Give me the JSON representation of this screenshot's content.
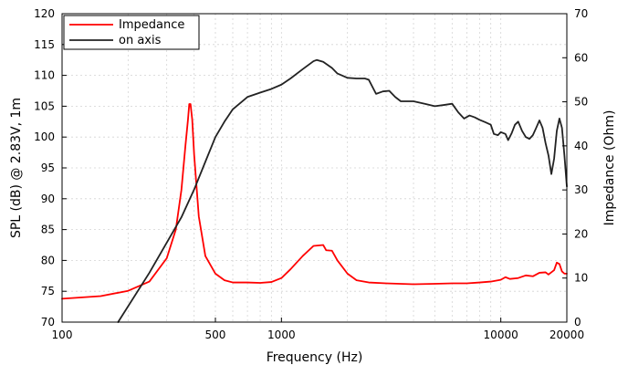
{
  "chart_data": {
    "type": "line",
    "xlabel": "Frequency (Hz)",
    "ylabel_left": "SPL (dB) @ 2.83V, 1m",
    "ylabel_right": "Impedance (Ohm)",
    "x_scale": "log",
    "xlim": [
      100,
      20000
    ],
    "ylim_left": [
      70,
      120
    ],
    "ylim_right": [
      0,
      70
    ],
    "x_ticks": [
      100,
      500,
      1000,
      10000,
      20000
    ],
    "x_tick_labels": [
      "100",
      "500",
      "1000",
      "10000",
      "20000"
    ],
    "y_left_ticks": [
      70,
      75,
      80,
      85,
      90,
      95,
      100,
      105,
      110,
      115,
      120
    ],
    "y_right_ticks": [
      0,
      10,
      20,
      30,
      40,
      50,
      60,
      70
    ],
    "grid": true,
    "legend_position": "top-left",
    "series": [
      {
        "name": "Impedance",
        "axis": "right",
        "color": "#ff0000",
        "points": [
          [
            100,
            5.3
          ],
          [
            150,
            5.9
          ],
          [
            200,
            7.1
          ],
          [
            250,
            9.2
          ],
          [
            300,
            14.5
          ],
          [
            330,
            21
          ],
          [
            350,
            30
          ],
          [
            365,
            40
          ],
          [
            375,
            46
          ],
          [
            380,
            49.5
          ],
          [
            385,
            49.5
          ],
          [
            392,
            46
          ],
          [
            400,
            38
          ],
          [
            420,
            24
          ],
          [
            450,
            15
          ],
          [
            500,
            11
          ],
          [
            550,
            9.5
          ],
          [
            600,
            9
          ],
          [
            700,
            9
          ],
          [
            800,
            8.9
          ],
          [
            900,
            9.1
          ],
          [
            1000,
            10
          ],
          [
            1100,
            12
          ],
          [
            1250,
            15
          ],
          [
            1400,
            17.3
          ],
          [
            1550,
            17.5
          ],
          [
            1600,
            16.3
          ],
          [
            1700,
            16.2
          ],
          [
            1800,
            14
          ],
          [
            2000,
            11
          ],
          [
            2200,
            9.5
          ],
          [
            2500,
            9
          ],
          [
            3000,
            8.8
          ],
          [
            4000,
            8.6
          ],
          [
            5000,
            8.7
          ],
          [
            6000,
            8.8
          ],
          [
            7000,
            8.8
          ],
          [
            8000,
            9
          ],
          [
            9000,
            9.2
          ],
          [
            10000,
            9.6
          ],
          [
            10500,
            10.2
          ],
          [
            11000,
            9.8
          ],
          [
            12000,
            10
          ],
          [
            13000,
            10.6
          ],
          [
            14000,
            10.4
          ],
          [
            15000,
            11.2
          ],
          [
            16000,
            11.3
          ],
          [
            16500,
            10.8
          ],
          [
            17500,
            11.8
          ],
          [
            18000,
            13.5
          ],
          [
            18500,
            13.2
          ],
          [
            19000,
            11.5
          ],
          [
            19500,
            11
          ],
          [
            20000,
            11
          ]
        ]
      },
      {
        "name": "on axis",
        "axis": "left",
        "color": "#222222",
        "points": [
          [
            180,
            70
          ],
          [
            250,
            78
          ],
          [
            350,
            87
          ],
          [
            400,
            91.5
          ],
          [
            450,
            96
          ],
          [
            500,
            100
          ],
          [
            550,
            102.5
          ],
          [
            600,
            104.5
          ],
          [
            700,
            106.5
          ],
          [
            800,
            107.2
          ],
          [
            900,
            107.8
          ],
          [
            1000,
            108.5
          ],
          [
            1100,
            109.5
          ],
          [
            1250,
            111
          ],
          [
            1400,
            112.3
          ],
          [
            1450,
            112.5
          ],
          [
            1550,
            112.2
          ],
          [
            1700,
            111.2
          ],
          [
            1800,
            110.3
          ],
          [
            2000,
            109.6
          ],
          [
            2200,
            109.5
          ],
          [
            2400,
            109.5
          ],
          [
            2500,
            109.3
          ],
          [
            2700,
            107
          ],
          [
            2900,
            107.4
          ],
          [
            3100,
            107.5
          ],
          [
            3300,
            106.5
          ],
          [
            3500,
            105.8
          ],
          [
            4000,
            105.8
          ],
          [
            4500,
            105.4
          ],
          [
            5000,
            105
          ],
          [
            5500,
            105.2
          ],
          [
            6000,
            105.4
          ],
          [
            6400,
            104
          ],
          [
            6800,
            103
          ],
          [
            7200,
            103.5
          ],
          [
            7600,
            103.2
          ],
          [
            8000,
            102.8
          ],
          [
            8500,
            102.4
          ],
          [
            9000,
            102
          ],
          [
            9300,
            100.5
          ],
          [
            9700,
            100.3
          ],
          [
            10000,
            100.8
          ],
          [
            10500,
            100.5
          ],
          [
            10800,
            99.5
          ],
          [
            11200,
            100.6
          ],
          [
            11600,
            102
          ],
          [
            12000,
            102.5
          ],
          [
            12500,
            101
          ],
          [
            13000,
            100
          ],
          [
            13500,
            99.7
          ],
          [
            14000,
            100.3
          ],
          [
            14500,
            101.5
          ],
          [
            15000,
            102.7
          ],
          [
            15500,
            101.5
          ],
          [
            16000,
            99
          ],
          [
            16500,
            97
          ],
          [
            17000,
            94
          ],
          [
            17500,
            96.5
          ],
          [
            18000,
            101
          ],
          [
            18500,
            103
          ],
          [
            19000,
            101.5
          ],
          [
            19500,
            97
          ],
          [
            20000,
            92
          ]
        ]
      }
    ]
  }
}
